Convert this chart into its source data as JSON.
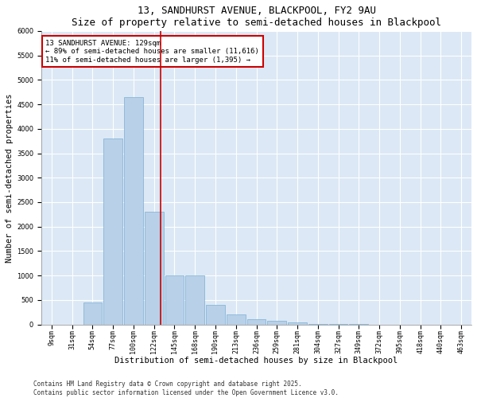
{
  "title1": "13, SANDHURST AVENUE, BLACKPOOL, FY2 9AU",
  "title2": "Size of property relative to semi-detached houses in Blackpool",
  "xlabel": "Distribution of semi-detached houses by size in Blackpool",
  "ylabel": "Number of semi-detached properties",
  "categories": [
    "9sqm",
    "31sqm",
    "54sqm",
    "77sqm",
    "100sqm",
    "122sqm",
    "145sqm",
    "168sqm",
    "190sqm",
    "213sqm",
    "236sqm",
    "259sqm",
    "281sqm",
    "304sqm",
    "327sqm",
    "349sqm",
    "372sqm",
    "395sqm",
    "418sqm",
    "440sqm",
    "463sqm"
  ],
  "values": [
    0,
    0,
    450,
    3800,
    4650,
    2300,
    1000,
    1000,
    400,
    200,
    100,
    75,
    50,
    10,
    5,
    3,
    2,
    1,
    1,
    0,
    0
  ],
  "bar_color": "#b8d0e8",
  "bar_edge_color": "#7aafd4",
  "vline_color": "#cc0000",
  "annotation_title": "13 SANDHURST AVENUE: 129sqm",
  "annotation_line1": "← 89% of semi-detached houses are smaller (11,616)",
  "annotation_line2": "11% of semi-detached houses are larger (1,395) →",
  "annotation_box_color": "#cc0000",
  "ylim": [
    0,
    6000
  ],
  "yticks": [
    0,
    500,
    1000,
    1500,
    2000,
    2500,
    3000,
    3500,
    4000,
    4500,
    5000,
    5500,
    6000
  ],
  "background_color": "#dce8f5",
  "footer1": "Contains HM Land Registry data © Crown copyright and database right 2025.",
  "footer2": "Contains public sector information licensed under the Open Government Licence v3.0.",
  "title_fontsize": 9,
  "subtitle_fontsize": 8,
  "axis_label_fontsize": 7.5,
  "tick_fontsize": 6,
  "annotation_fontsize": 6.5,
  "footer_fontsize": 5.5
}
